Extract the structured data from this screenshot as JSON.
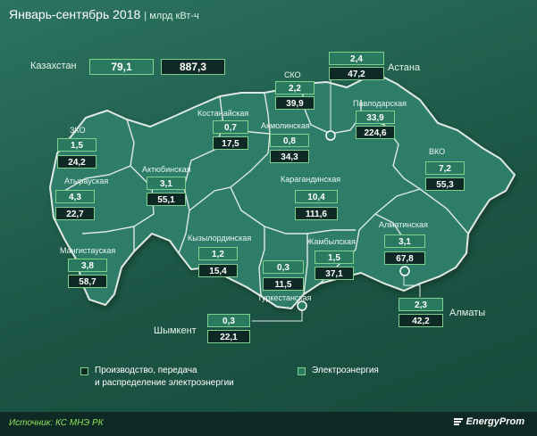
{
  "header": {
    "title": "Январь-сентябрь 2018",
    "unit": "| млрд кВт-ч"
  },
  "kazakhstan": {
    "label": "Казахстан",
    "electricity": "79,1",
    "production": "887,3"
  },
  "regions": [
    {
      "id": "sko",
      "name": "СКО",
      "electricity": "2,2",
      "production": "39,9"
    },
    {
      "id": "astana",
      "name": "Астана",
      "electricity": "2,4",
      "production": "47,2"
    },
    {
      "id": "kostanay",
      "name": "Костанайская",
      "electricity": "0,7",
      "production": "17,5"
    },
    {
      "id": "pavlodar",
      "name": "Павлодарская",
      "electricity": "33,9",
      "production": "224,6"
    },
    {
      "id": "akmola",
      "name": "Акмолинская",
      "electricity": "0,8",
      "production": "34,3"
    },
    {
      "id": "zko",
      "name": "ЗКО",
      "electricity": "1,5",
      "production": "24,2"
    },
    {
      "id": "vko",
      "name": "ВКО",
      "electricity": "7,2",
      "production": "55,3"
    },
    {
      "id": "aktobe",
      "name": "Актюбинская",
      "electricity": "3,1",
      "production": "55,1"
    },
    {
      "id": "atyrau",
      "name": "Атырауская",
      "electricity": "4,3",
      "production": "22,7"
    },
    {
      "id": "karaganda",
      "name": "Карагандинская",
      "electricity": "10,4",
      "production": "111,6"
    },
    {
      "id": "almaty_obl",
      "name": "Алматинская",
      "electricity": "3,1",
      "production": "67,8"
    },
    {
      "id": "kyzylorda",
      "name": "Кызылординская",
      "electricity": "1,2",
      "production": "15,4"
    },
    {
      "id": "zhambyl",
      "name": "Жамбылская",
      "electricity": "1,5",
      "production": "37,1"
    },
    {
      "id": "mangistau",
      "name": "Мангистауская",
      "electricity": "3,8",
      "production": "58,7"
    },
    {
      "id": "turkestan",
      "name": "Туркестанская",
      "electricity": "0,3",
      "production": "11,5"
    },
    {
      "id": "shymkent",
      "name": "Шымкент",
      "electricity": "0,3",
      "production": "22,1"
    },
    {
      "id": "almaty",
      "name": "Алматы",
      "electricity": "2,3",
      "production": "42,2"
    }
  ],
  "legend": {
    "production_line1": "Производство, передача",
    "production_line2": "и распределение электроэнергии",
    "electricity": "Электроэнергия"
  },
  "footer": {
    "source": "Источник: КС МНЭ РК",
    "logo": "EnergyProm"
  },
  "colors": {
    "background": "#1f5d4c",
    "electricity_box": "#2a7a62",
    "production_box": "#0f2a24",
    "border": "#7fd08a",
    "source_text": "#8fe35a"
  }
}
